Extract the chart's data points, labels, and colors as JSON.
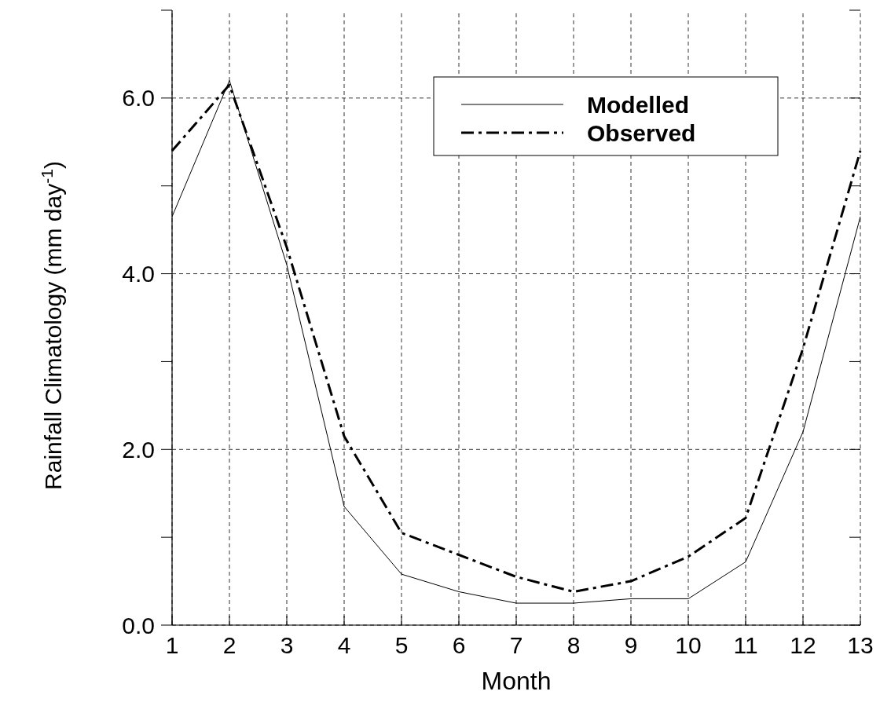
{
  "chart_data": {
    "type": "line",
    "xlabel": "Month",
    "ylabel": "Rainfall Climatology (mm day$^{-1}$)",
    "x": [
      1,
      2,
      3,
      4,
      5,
      6,
      7,
      8,
      9,
      10,
      11,
      12,
      13
    ],
    "xlim": [
      1,
      13
    ],
    "xticks": [
      1,
      2,
      3,
      4,
      5,
      6,
      7,
      8,
      9,
      10,
      11,
      12,
      13
    ],
    "ylim": [
      0,
      7
    ],
    "yticks": [
      {
        "value": 0,
        "label": "0.0"
      },
      {
        "value": 1,
        "label": null
      },
      {
        "value": 2,
        "label": "2.0"
      },
      {
        "value": 3,
        "label": null
      },
      {
        "value": 4,
        "label": "4.0"
      },
      {
        "value": 5,
        "label": null
      },
      {
        "value": 6,
        "label": "6.0"
      },
      {
        "value": 7,
        "label": null
      }
    ],
    "grid": true,
    "legend": "top right",
    "marker": "none",
    "series": [
      {
        "name": "Modelled",
        "color": "#000000",
        "line_style": "solid",
        "values": [
          4.65,
          6.2,
          4.1,
          1.35,
          0.58,
          0.38,
          0.25,
          0.25,
          0.3,
          0.3,
          0.72,
          2.2,
          4.65
        ]
      },
      {
        "name": "Observed",
        "color": "#000000",
        "line_style": "dashed",
        "values": [
          5.4,
          6.15,
          4.3,
          2.15,
          1.05,
          0.8,
          0.55,
          0.38,
          0.5,
          0.78,
          1.22,
          3.15,
          5.4
        ]
      }
    ]
  }
}
